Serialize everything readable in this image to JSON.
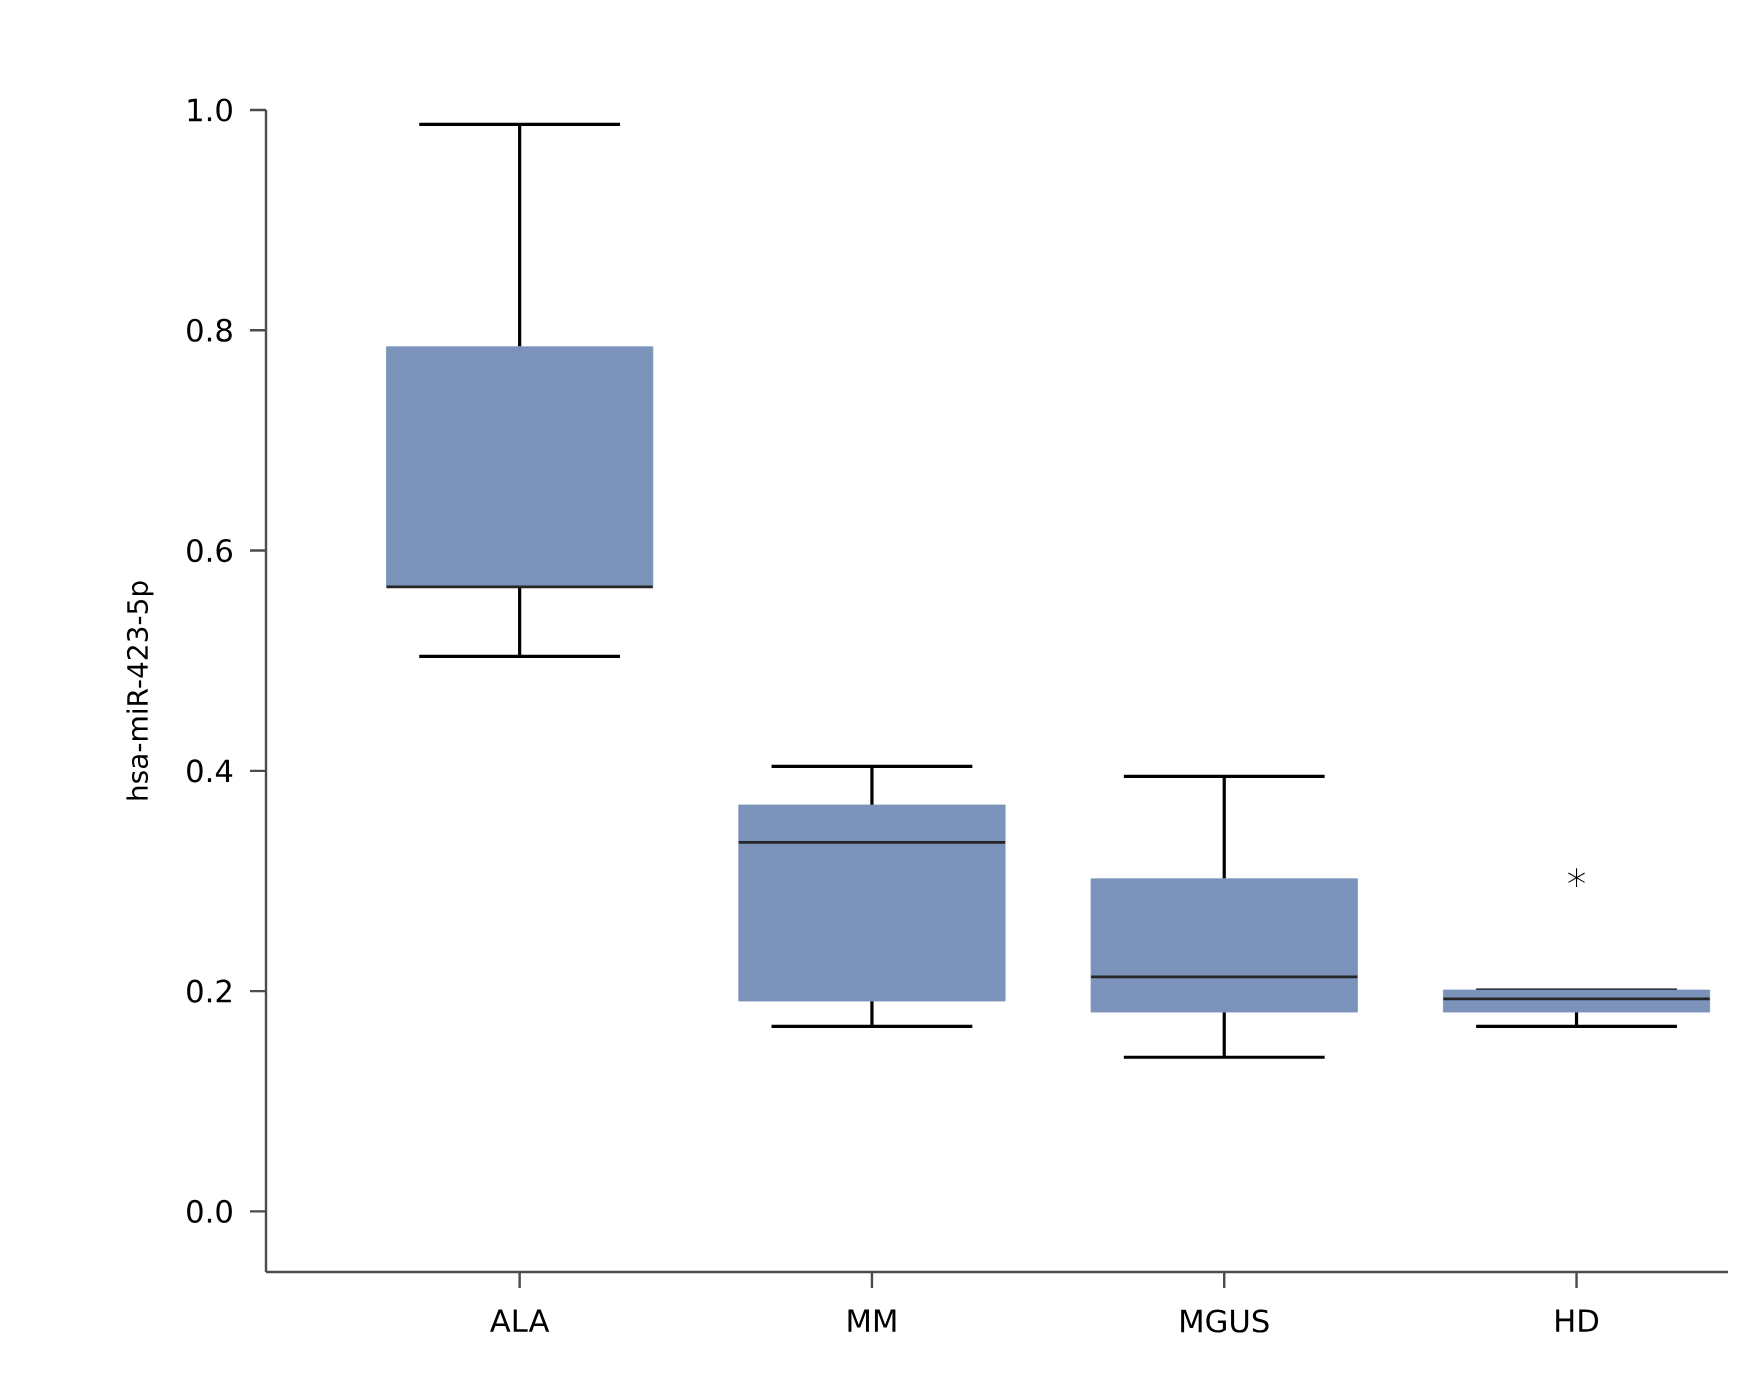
{
  "chart_data": {
    "type": "box",
    "ylabel": "hsa-miR-423-5p",
    "categories": [
      "ALA",
      "MM",
      "MGUS",
      "HD"
    ],
    "boxes": [
      {
        "low": 0.504,
        "q1": 0.567,
        "median": 0.567,
        "q3": 0.785,
        "high": 0.987
      },
      {
        "low": 0.168,
        "q1": 0.191,
        "median": 0.335,
        "q3": 0.369,
        "high": 0.404
      },
      {
        "low": 0.14,
        "q1": 0.181,
        "median": 0.213,
        "q3": 0.302,
        "high": 0.395
      },
      {
        "low": 0.168,
        "q1": 0.181,
        "median": 0.193,
        "q3": 0.201,
        "high": 0.201,
        "outliers": [
          0.303
        ]
      }
    ],
    "color": "#7b93bb",
    "ylim": [
      -0.055,
      1.0
    ],
    "yticks": [
      {
        "value": 0,
        "label": "0.0"
      },
      0.2,
      0.4,
      0.6,
      0.8,
      {
        "value": 1.0,
        "label": "1.0"
      }
    ]
  }
}
